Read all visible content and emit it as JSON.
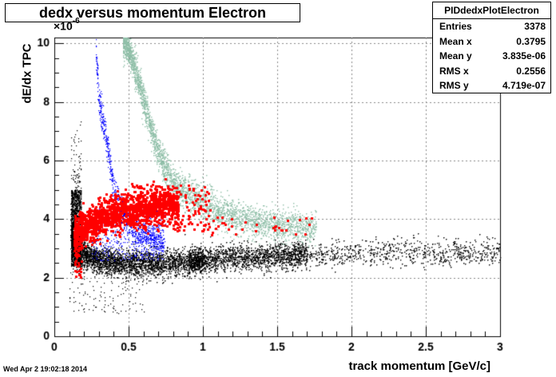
{
  "title": "dedx versus momentum Electron",
  "stats": {
    "name": "PIDdedxPlotElectron",
    "rows": [
      {
        "key": "Entries",
        "value": "3378"
      },
      {
        "key": "Mean x",
        "value": "0.3795"
      },
      {
        "key": "Mean y",
        "value": "3.835e-06"
      },
      {
        "key": "RMS x",
        "value": "0.2556"
      },
      {
        "key": "RMS y",
        "value": "4.719e-07"
      }
    ]
  },
  "footer": {
    "timestamp": "Wed Apr  2 19:02:18 2014"
  },
  "chart_data": {
    "type": "scatter",
    "title": "dedx versus momentum Electron",
    "xlabel": "track momentum [GeV/c]",
    "ylabel": "dE/dx TPC",
    "y_multiplier": "×10",
    "y_multiplier_exp": "-6",
    "xlim": [
      0,
      3
    ],
    "ylim": [
      0,
      10.2
    ],
    "x_ticks": [
      0,
      0.5,
      1,
      1.5,
      2,
      2.5,
      3
    ],
    "x_tick_labels": [
      "0",
      "0.5",
      "1",
      "1.5",
      "2",
      "2.5",
      "3"
    ],
    "y_ticks": [
      0,
      2,
      4,
      6,
      8,
      10
    ],
    "y_tick_labels": [
      "0",
      "2",
      "4",
      "6",
      "8",
      "10"
    ],
    "grid": true,
    "series": [
      {
        "color": "#000000",
        "marker": "dot",
        "approx_points": [
          [
            0.12,
            3.4
          ],
          [
            0.15,
            3.0
          ],
          [
            0.2,
            2.8
          ],
          [
            0.3,
            2.6
          ],
          [
            0.5,
            2.5
          ],
          [
            0.8,
            2.5
          ],
          [
            1.0,
            2.6
          ],
          [
            1.3,
            2.7
          ],
          [
            1.7,
            2.8
          ],
          [
            2.0,
            2.85
          ],
          [
            2.5,
            2.9
          ],
          [
            2.9,
            2.9
          ]
        ]
      },
      {
        "color": "#ff0000",
        "marker": "square",
        "approx_points": [
          [
            0.13,
            3.4
          ],
          [
            0.2,
            3.8
          ],
          [
            0.3,
            4.0
          ],
          [
            0.45,
            4.3
          ],
          [
            0.6,
            4.4
          ],
          [
            0.75,
            4.6
          ],
          [
            0.9,
            4.2
          ],
          [
            1.1,
            3.8
          ],
          [
            1.3,
            3.7
          ],
          [
            1.5,
            3.8
          ],
          [
            1.7,
            3.8
          ]
        ]
      },
      {
        "color": "#0000ff",
        "marker": "dot",
        "approx_points": [
          [
            0.28,
            9.6
          ],
          [
            0.3,
            8.0
          ],
          [
            0.33,
            7.2
          ],
          [
            0.37,
            6.0
          ],
          [
            0.4,
            5.0
          ],
          [
            0.45,
            4.3
          ],
          [
            0.55,
            3.6
          ],
          [
            0.7,
            3.3
          ]
        ]
      },
      {
        "color": "#8fbfa8",
        "marker": "dot",
        "approx_points": [
          [
            0.47,
            10.2
          ],
          [
            0.55,
            9.0
          ],
          [
            0.6,
            8.0
          ],
          [
            0.65,
            7.0
          ],
          [
            0.72,
            6.0
          ],
          [
            0.8,
            5.2
          ],
          [
            0.95,
            4.7
          ],
          [
            1.1,
            4.3
          ],
          [
            1.3,
            3.95
          ],
          [
            1.5,
            3.8
          ],
          [
            1.7,
            3.7
          ]
        ]
      }
    ]
  }
}
